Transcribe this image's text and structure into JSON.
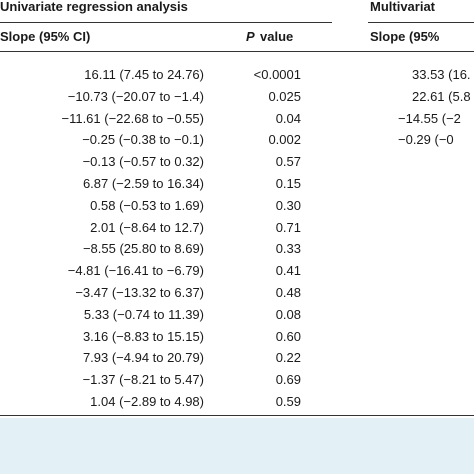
{
  "table": {
    "groups": [
      "Univariate regression analysis",
      "Multivariat"
    ],
    "columns": [
      "Slope (95% CI)",
      "P",
      "value",
      "Slope (95%"
    ],
    "rows": [
      [
        "16.11 (7.45 to 24.76)",
        "<0.0001",
        "33.53 (16."
      ],
      [
        "−10.73 (−20.07 to −1.4)",
        "0.025",
        "22.61 (5.8"
      ],
      [
        "−11.61 (−22.68 to −0.55)",
        "0.04",
        "−14.55 (−2"
      ],
      [
        "−0.25 (−0.38 to −0.1)",
        "0.002",
        "−0.29 (−0"
      ],
      [
        "−0.13 (−0.57 to 0.32)",
        "0.57"
      ],
      [
        "6.87 (−2.59 to 16.34)",
        "0.15"
      ],
      [
        "0.58 (−0.53 to 1.69)",
        "0.30"
      ],
      [
        "2.01 (−8.64 to 12.7)",
        "0.71"
      ],
      [
        "−8.55 (25.80 to 8.69)",
        "0.33"
      ],
      [
        "−4.81 (−16.41 to −6.79)",
        "0.41"
      ],
      [
        "−3.47 (−13.32 to 6.37)",
        "0.48"
      ],
      [
        "5.33 (−0.74 to 11.39)",
        "0.08"
      ],
      [
        "3.16 (−8.83 to 15.15)",
        "0.60"
      ],
      [
        "7.93 (−4.94 to 20.79)",
        "0.22"
      ],
      [
        "−1.37 (−8.21 to 5.47)",
        "0.69"
      ],
      [
        "1.04 (−2.89 to 4.98)",
        "0.59"
      ]
    ]
  }
}
